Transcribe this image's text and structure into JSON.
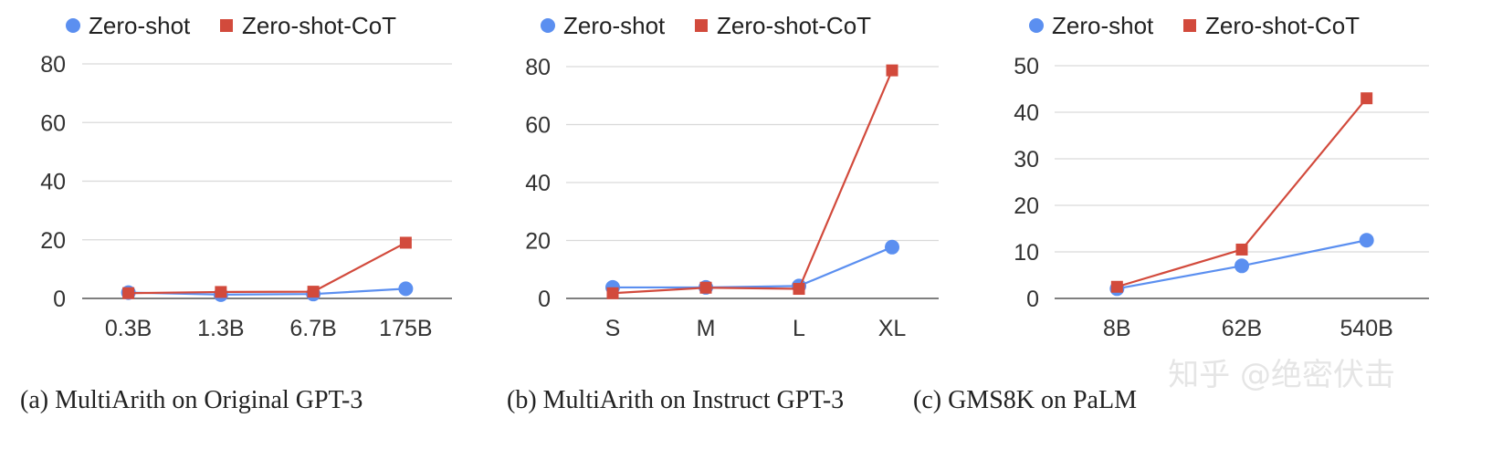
{
  "colors": {
    "zero_shot": "#5b8ff0",
    "zero_shot_cot": "#d24a3c"
  },
  "legend": {
    "zero_shot": "Zero-shot",
    "zero_shot_cot": "Zero-shot-CoT"
  },
  "watermark": "知乎 @绝密伏击",
  "chart_data": [
    {
      "type": "line",
      "caption": "(a) MultiArith on Original GPT-3",
      "categories": [
        "0.3B",
        "1.3B",
        "6.7B",
        "175B"
      ],
      "ylim": [
        0,
        80
      ],
      "yticks": [
        0,
        20,
        40,
        60,
        80
      ],
      "grid": true,
      "legend_position": "top",
      "series": [
        {
          "name": "Zero-shot",
          "marker": "circle",
          "values": [
            2.0,
            1.3,
            1.5,
            3.3
          ]
        },
        {
          "name": "Zero-shot-CoT",
          "marker": "square",
          "values": [
            1.8,
            2.2,
            2.3,
            19.0
          ]
        }
      ]
    },
    {
      "type": "line",
      "caption": "(b) MultiArith on Instruct GPT-3",
      "categories": [
        "S",
        "M",
        "L",
        "XL"
      ],
      "ylim": [
        0,
        80
      ],
      "yticks": [
        0,
        20,
        40,
        60,
        80
      ],
      "grid": true,
      "legend_position": "top",
      "series": [
        {
          "name": "Zero-shot",
          "marker": "circle",
          "values": [
            3.8,
            3.8,
            4.3,
            17.7
          ]
        },
        {
          "name": "Zero-shot-CoT",
          "marker": "square",
          "values": [
            1.8,
            3.7,
            3.3,
            78.7
          ]
        }
      ]
    },
    {
      "type": "line",
      "caption": "(c) GMS8K on PaLM",
      "categories": [
        "8B",
        "62B",
        "540B"
      ],
      "ylim": [
        0,
        50
      ],
      "yticks": [
        0,
        10,
        20,
        30,
        40,
        50
      ],
      "grid": true,
      "legend_position": "top",
      "series": [
        {
          "name": "Zero-shot",
          "marker": "circle",
          "values": [
            2.1,
            7.0,
            12.5
          ]
        },
        {
          "name": "Zero-shot-CoT",
          "marker": "square",
          "values": [
            2.5,
            10.5,
            43.0
          ]
        }
      ]
    }
  ]
}
